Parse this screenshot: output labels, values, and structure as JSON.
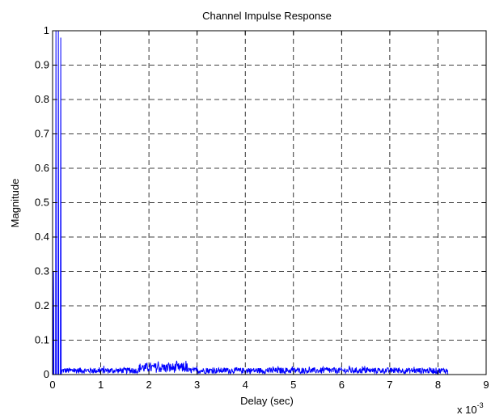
{
  "chart_data": {
    "type": "line",
    "title": "Channel Impulse Response",
    "xlabel": "Delay (sec)",
    "ylabel": "Magnitude",
    "x_exponent_label": "x 10",
    "x_exponent_power": "-3",
    "xlim": [
      0,
      9
    ],
    "ylim": [
      0,
      1
    ],
    "x_ticks": [
      "0",
      "1",
      "2",
      "3",
      "4",
      "5",
      "6",
      "7",
      "8",
      "9"
    ],
    "y_ticks": [
      "0",
      "0.1",
      "0.2",
      "0.3",
      "0.4",
      "0.5",
      "0.6",
      "0.7",
      "0.8",
      "0.9",
      "1"
    ],
    "grid": true,
    "series": [
      {
        "color": "#0000ff",
        "peaks": [
          {
            "x": 0.02,
            "y": 0.3
          },
          {
            "x": 0.07,
            "y": 1.0
          },
          {
            "x": 0.12,
            "y": 1.0
          },
          {
            "x": 0.17,
            "y": 0.98
          }
        ],
        "noise_x_range": [
          0.2,
          8.2
        ],
        "noise_max": 0.04,
        "noise_typical": 0.02
      }
    ]
  }
}
